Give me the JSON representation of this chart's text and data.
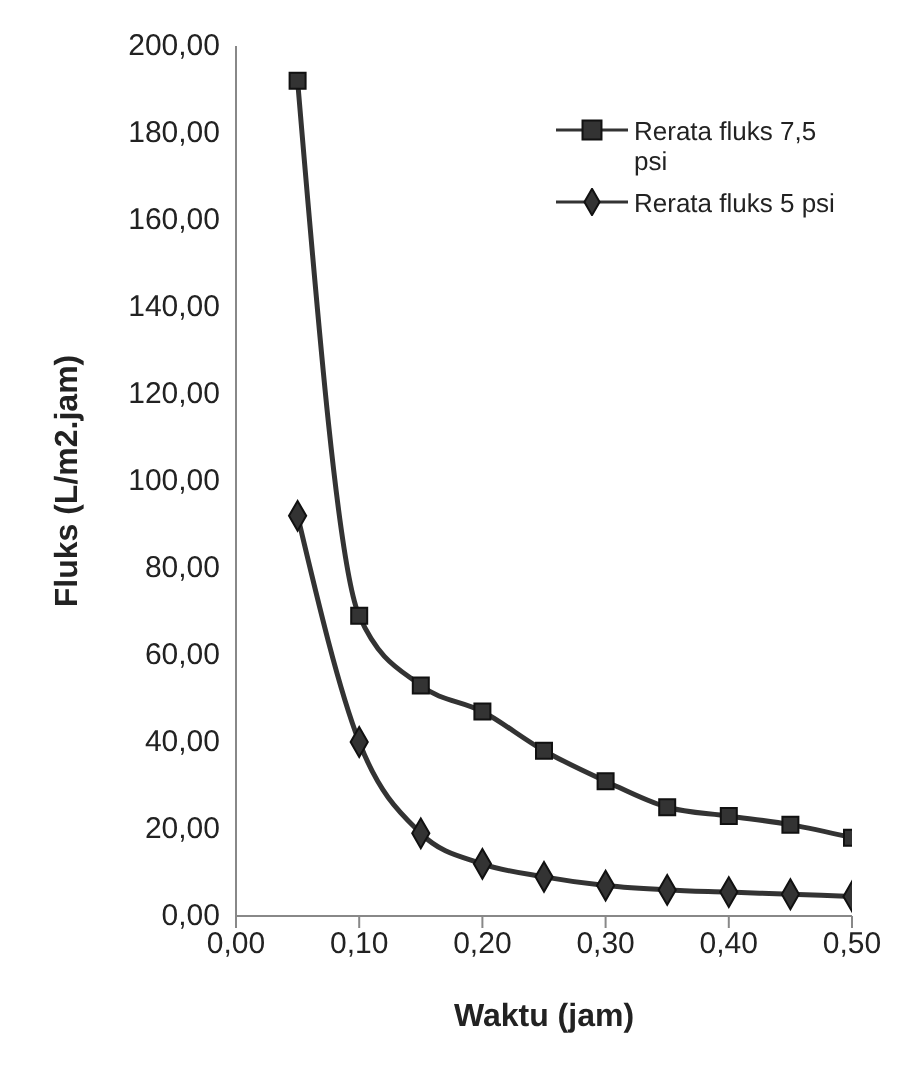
{
  "chart_data": {
    "type": "line",
    "xlabel": "Waktu (jam)",
    "ylabel": "Fluks (L/m2.jam)",
    "x": [
      0.05,
      0.1,
      0.15,
      0.2,
      0.25,
      0.3,
      0.35,
      0.4,
      0.45,
      0.5
    ],
    "series": [
      {
        "name": "Rerata fluks 7,5 psi",
        "color": "#333333",
        "marker": "square",
        "values": [
          192,
          69,
          53,
          47,
          38,
          31,
          25,
          23,
          21,
          18
        ]
      },
      {
        "name": "Rerata fluks 5 psi",
        "color": "#333333",
        "marker": "diamond",
        "values": [
          92,
          40,
          19,
          12,
          9,
          7,
          6,
          5.5,
          5,
          4.5
        ]
      }
    ],
    "xlim": [
      0,
      0.5
    ],
    "xticks": [
      {
        "value": 0,
        "label": "0,00"
      },
      {
        "value": 0.1,
        "label": "0,10"
      },
      {
        "value": 0.2,
        "label": "0,20"
      },
      {
        "value": 0.3,
        "label": "0,30"
      },
      {
        "value": 0.4,
        "label": "0,40"
      },
      {
        "value": 0.5,
        "label": "0,50"
      }
    ],
    "ylim": [
      0,
      200
    ],
    "yticks": [
      {
        "value": 0,
        "label": "0,00"
      },
      {
        "value": 20,
        "label": "20,00"
      },
      {
        "value": 40,
        "label": "40,00"
      },
      {
        "value": 60,
        "label": "60,00"
      },
      {
        "value": 80,
        "label": "80,00"
      },
      {
        "value": 100,
        "label": "100,00"
      },
      {
        "value": 120,
        "label": "120,00"
      },
      {
        "value": 140,
        "label": "140,00"
      },
      {
        "value": 160,
        "label": "160,00"
      },
      {
        "value": 180,
        "label": "180,00"
      },
      {
        "value": 200,
        "label": "200,00"
      }
    ],
    "grid": false,
    "legend": "top right"
  }
}
